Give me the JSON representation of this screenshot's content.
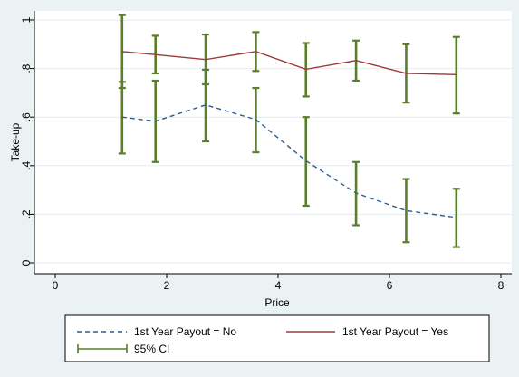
{
  "chart_data": {
    "type": "line",
    "title": "",
    "xlabel": "Price",
    "ylabel": "Take-up",
    "xlim": [
      0,
      8
    ],
    "ylim": [
      0,
      1
    ],
    "x_ticks": [
      0,
      2,
      4,
      6,
      8
    ],
    "x_tick_labels": [
      "0",
      "2",
      "4",
      "6",
      "8"
    ],
    "y_ticks": [
      0,
      0.2,
      0.4,
      0.6,
      0.8,
      1
    ],
    "y_tick_labels": [
      "0",
      ".2",
      ".4",
      ".6",
      ".8",
      "1"
    ],
    "grid": true,
    "legend_position": "bottom",
    "series": [
      {
        "name": "1st Year Payout = No",
        "style": "dashed",
        "color": "#2a5d8f",
        "x": [
          1.2,
          1.8,
          2.7,
          3.6,
          4.5,
          5.4,
          6.3,
          7.2
        ],
        "y": [
          0.6,
          0.583,
          0.65,
          0.59,
          0.42,
          0.287,
          0.215,
          0.187
        ],
        "ci_low": [
          0.45,
          0.415,
          0.5,
          0.455,
          0.235,
          0.155,
          0.085,
          0.065
        ],
        "ci_high": [
          0.745,
          0.75,
          0.795,
          0.72,
          0.6,
          0.415,
          0.345,
          0.305
        ]
      },
      {
        "name": "1st Year Payout = Yes",
        "style": "solid",
        "color": "#9e3a3a",
        "x": [
          1.2,
          1.8,
          2.7,
          3.6,
          4.5,
          5.4,
          6.3,
          7.2
        ],
        "y": [
          0.87,
          0.857,
          0.837,
          0.87,
          0.797,
          0.833,
          0.78,
          0.775
        ],
        "ci_low": [
          0.72,
          0.78,
          0.735,
          0.79,
          0.685,
          0.75,
          0.66,
          0.615
        ],
        "ci_high": [
          1.02,
          0.935,
          0.94,
          0.95,
          0.905,
          0.915,
          0.9,
          0.93
        ]
      }
    ],
    "ci_legend": {
      "label": "95% CI",
      "color": "#5a7f2a"
    }
  }
}
